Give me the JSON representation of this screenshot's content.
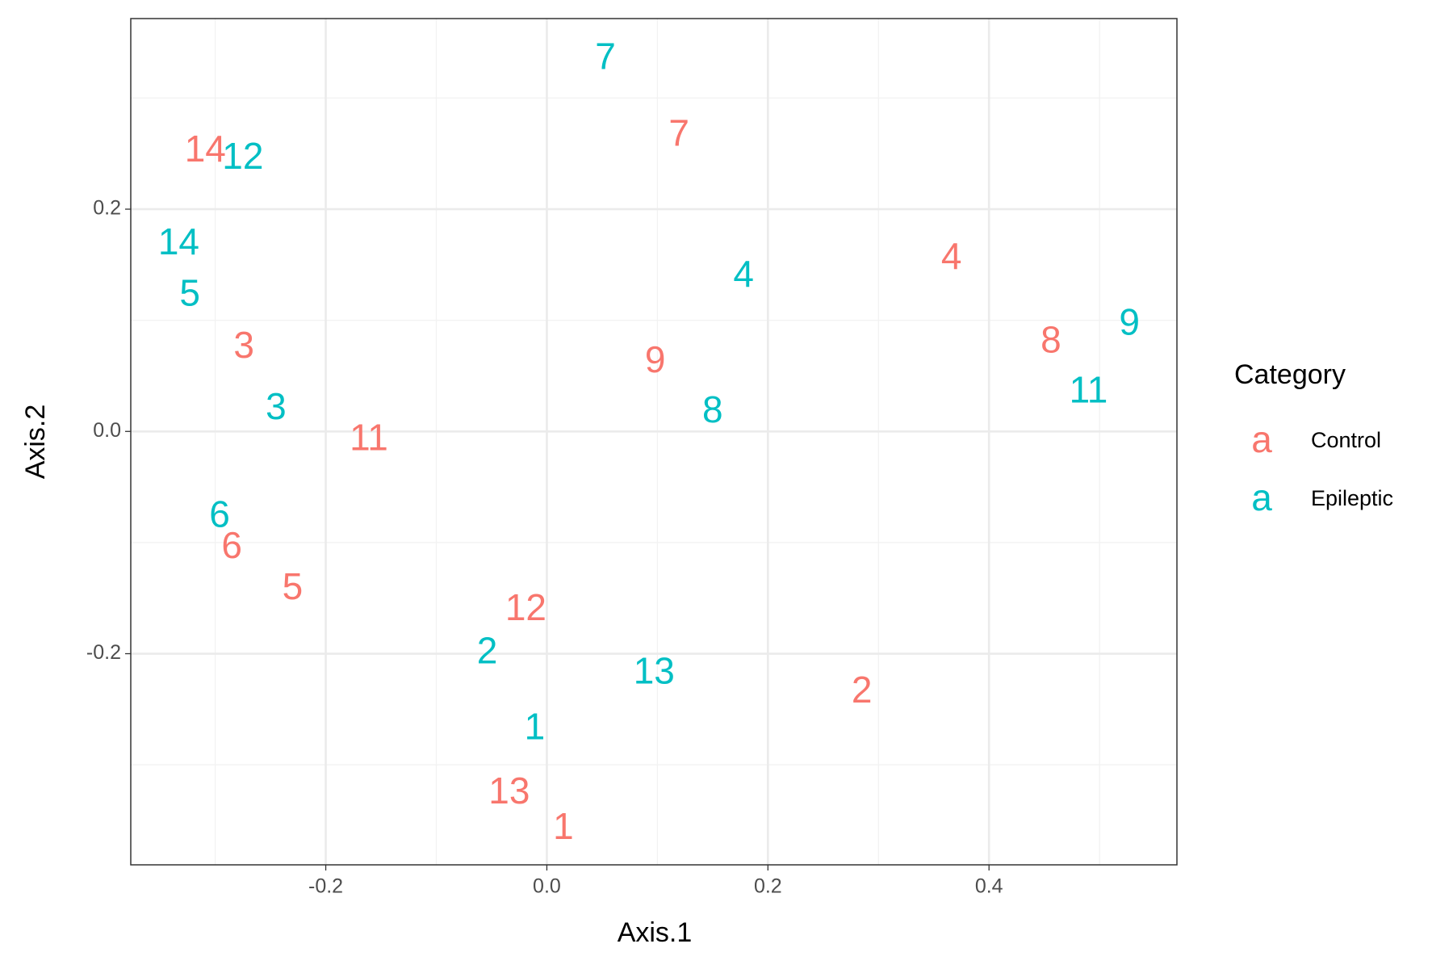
{
  "chart_data": {
    "type": "scatter",
    "xlabel": "Axis.1",
    "ylabel": "Axis.2",
    "xlim": [
      -0.3764,
      0.57
    ],
    "ylim": [
      -0.39,
      0.3715
    ],
    "xticks": [
      -0.2,
      {
        "value": 0,
        "label": "0.0"
      },
      0.2,
      0.4
    ],
    "yticks": [
      -0.2,
      {
        "value": 0,
        "label": "0.0"
      },
      0.2
    ],
    "xminor": [
      -0.3,
      -0.1,
      0.1,
      0.3,
      0.5
    ],
    "yminor": [
      -0.3,
      -0.1,
      0.1,
      0.3
    ],
    "grid": true,
    "legend": {
      "title": "Category",
      "key": "a",
      "position": "right"
    },
    "series": [
      {
        "name": "Control",
        "color": "#F8766D",
        "labels": [
          "14",
          "7",
          "4",
          "8",
          "9",
          "3",
          "11",
          "6",
          "5",
          "12",
          "2",
          "13",
          "1"
        ],
        "x": [
          -0.309,
          0.1196,
          0.366,
          0.456,
          0.098,
          -0.274,
          -0.161,
          -0.285,
          -0.23,
          -0.019,
          0.285,
          -0.034,
          0.015
        ],
        "values": [
          0.2516,
          0.266,
          0.155,
          0.08,
          0.062,
          0.075,
          -0.008,
          -0.105,
          -0.142,
          -0.161,
          -0.235,
          -0.326,
          -0.358
        ]
      },
      {
        "name": "Epileptic",
        "color": "#00BFC4",
        "labels": [
          "7",
          "12",
          "14",
          "5",
          "3",
          "6",
          "2",
          "13",
          "1",
          "4",
          "8",
          "9",
          "11"
        ],
        "x": [
          0.053,
          -0.275,
          -0.333,
          -0.323,
          -0.245,
          -0.296,
          -0.054,
          0.097,
          -0.011,
          0.178,
          0.15,
          0.527,
          0.49
        ],
        "values": [
          0.335,
          0.245,
          0.168,
          0.122,
          0.02,
          -0.077,
          -0.2,
          -0.218,
          -0.268,
          0.139,
          0.017,
          0.096,
          0.035
        ]
      }
    ]
  }
}
